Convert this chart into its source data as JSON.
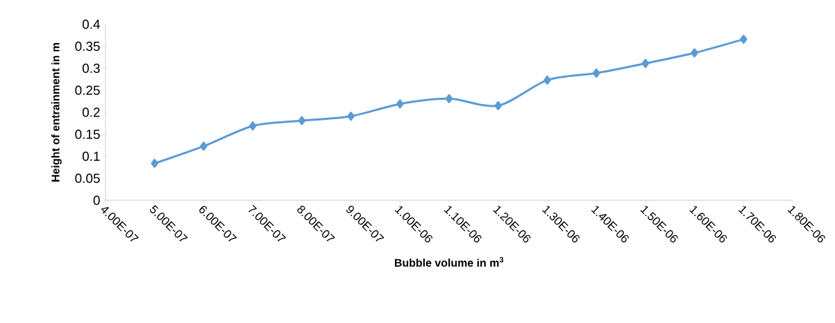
{
  "chart_data": {
    "type": "line",
    "xlabel": "Bubble volume in m$^{3}$",
    "ylabel": "Height of entrainment in m",
    "x": [
      5e-07,
      6e-07,
      7e-07,
      8e-07,
      9e-07,
      1e-06,
      1.1e-06,
      1.2e-06,
      1.3e-06,
      1.4e-06,
      1.5e-06,
      1.6e-06,
      1.7e-06
    ],
    "series": [
      {
        "color": "#5b9bd5",
        "values": [
          0.084,
          0.123,
          0.169,
          0.181,
          0.191,
          0.219,
          0.231,
          0.215,
          0.273,
          0.289,
          0.311,
          0.335,
          0.366
        ]
      }
    ],
    "xlim": [
      4e-07,
      1.8e-06
    ],
    "xticks": [
      {
        "value": 4e-07,
        "label": "4.00E-07"
      },
      {
        "value": 5e-07,
        "label": "5.00E-07"
      },
      {
        "value": 6e-07,
        "label": "6.00E-07"
      },
      {
        "value": 7e-07,
        "label": "7.00E-07"
      },
      {
        "value": 8e-07,
        "label": "8.00E-07"
      },
      {
        "value": 9e-07,
        "label": "9.00E-07"
      },
      {
        "value": 1e-06,
        "label": "1.00E-06"
      },
      {
        "value": 1.1e-06,
        "label": "1.10E-06"
      },
      {
        "value": 1.2e-06,
        "label": "1.20E-06"
      },
      {
        "value": 1.3e-06,
        "label": "1.30E-06"
      },
      {
        "value": 1.4e-06,
        "label": "1.40E-06"
      },
      {
        "value": 1.5e-06,
        "label": "1.50E-06"
      },
      {
        "value": 1.6e-06,
        "label": "1.60E-06"
      },
      {
        "value": 1.7e-06,
        "label": "1.70E-06"
      },
      {
        "value": 1.8e-06,
        "label": "1.80E-06"
      }
    ],
    "ylim": [
      0,
      0.4
    ],
    "yticks": [
      0,
      0.05,
      0.1,
      0.15,
      0.2,
      0.25,
      0.3,
      0.35,
      0.4
    ],
    "marker": "diamond",
    "line_style": "solid"
  }
}
